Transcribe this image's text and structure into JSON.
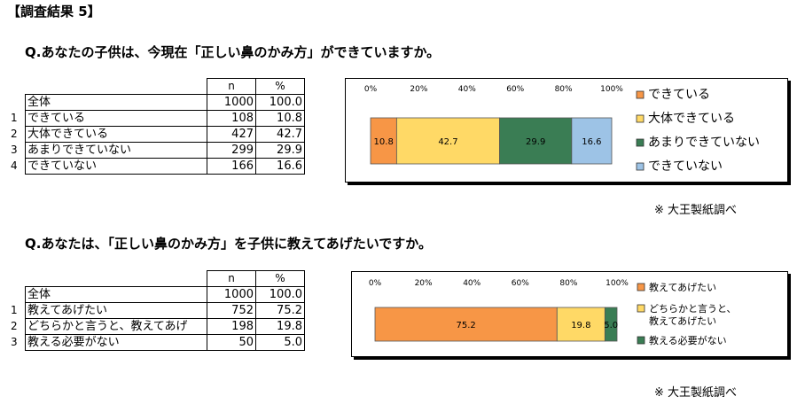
{
  "page_title": "【調査結果 5】",
  "source_note": "※ 大王製紙調べ",
  "col_headers": {
    "n": "n",
    "pct": "%"
  },
  "chart_data": [
    {
      "type": "bar",
      "stacked": true,
      "orientation": "horizontal",
      "title": "Q.あなたの子供は、今現在「正しい鼻のかみ方」ができていますか。",
      "x_ticks": [
        "0%",
        "20%",
        "40%",
        "60%",
        "80%",
        "100%"
      ],
      "xlim": [
        0,
        100
      ],
      "legend_position": "right",
      "total": {
        "label": "全体",
        "n": "1000",
        "pct": "100.0"
      },
      "series": [
        {
          "name": "できている",
          "value": 10.8,
          "n": "108",
          "pct": "10.8",
          "color": "#F79646"
        },
        {
          "name": "大体できている",
          "value": 42.7,
          "n": "427",
          "pct": "42.7",
          "color": "#FFD966"
        },
        {
          "name": "あまりできていない",
          "value": 29.9,
          "n": "299",
          "pct": "29.9",
          "color": "#3A7D54"
        },
        {
          "name": "できていない",
          "value": 16.6,
          "n": "166",
          "pct": "16.6",
          "color": "#9DC3E6"
        }
      ]
    },
    {
      "type": "bar",
      "stacked": true,
      "orientation": "horizontal",
      "title": "Q.あなたは、「正しい鼻のかみ方」を子供に教えてあげたいですか。",
      "x_ticks": [
        "0%",
        "20%",
        "40%",
        "60%",
        "80%",
        "100%"
      ],
      "xlim": [
        0,
        100
      ],
      "legend_position": "right",
      "total": {
        "label": "全体",
        "n": "1000",
        "pct": "100.0"
      },
      "series": [
        {
          "name": "教えてあげたい",
          "table_label": "教えてあげたい",
          "value": 75.2,
          "n": "752",
          "pct": "75.2",
          "color": "#F79646"
        },
        {
          "name": "どちらかと言うと、教えてあげたい",
          "table_label": "どちらかと言うと、教えてあげ",
          "value": 19.8,
          "n": "198",
          "pct": "19.8",
          "color": "#FFD966"
        },
        {
          "name": "教える必要がない",
          "table_label": "教える必要がない",
          "value": 5.0,
          "n": "50",
          "pct": "5.0",
          "color": "#3A7D54"
        }
      ]
    }
  ]
}
